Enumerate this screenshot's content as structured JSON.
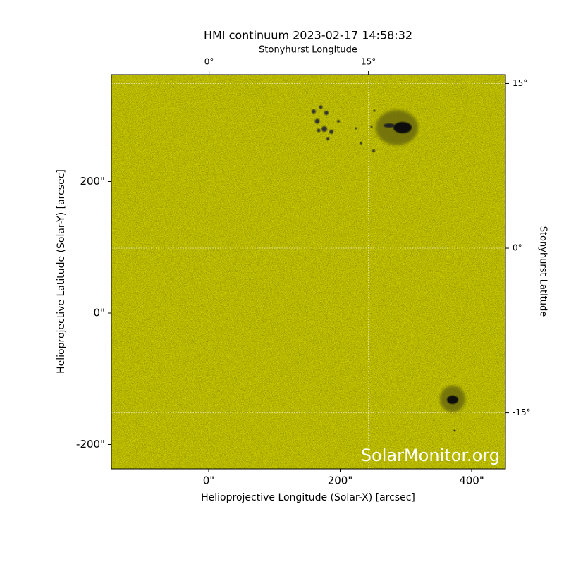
{
  "chart_data": {
    "type": "image",
    "title": "HMI continuum 2023-02-17 14:58:32",
    "xlabel": "Helioprojective Longitude (Solar-X) [arcsec]",
    "ylabel": "Helioprojective Latitude (Solar-Y) [arcsec]",
    "x2label": "Stonyhurst Longitude",
    "y2label": "Stonyhurst Latitude",
    "watermark": "SolarMonitor.org",
    "color": "#cccc00",
    "grid": true,
    "xlim": [
      -148,
      451.5
    ],
    "ylim": [
      -237,
      362.5
    ],
    "xticks": [
      {
        "value": 0,
        "label": "0\""
      },
      {
        "value": 200,
        "label": "200\""
      },
      {
        "value": 400,
        "label": "400\""
      }
    ],
    "yticks": [
      {
        "value": -200,
        "label": "-200\""
      },
      {
        "value": 0,
        "label": "0\""
      },
      {
        "value": 200,
        "label": "200\""
      }
    ],
    "x2lim": [
      -9.2,
      27.9
    ],
    "x2ticks": [
      {
        "value": 0,
        "label": "0°"
      },
      {
        "value": 15,
        "label": "15°"
      }
    ],
    "y2lim": [
      -20.1,
      15.8
    ],
    "y2ticks": [
      {
        "value": 15,
        "label": "15°"
      },
      {
        "value": 0,
        "label": "0°"
      },
      {
        "value": -15,
        "label": "-15°"
      }
    ]
  }
}
